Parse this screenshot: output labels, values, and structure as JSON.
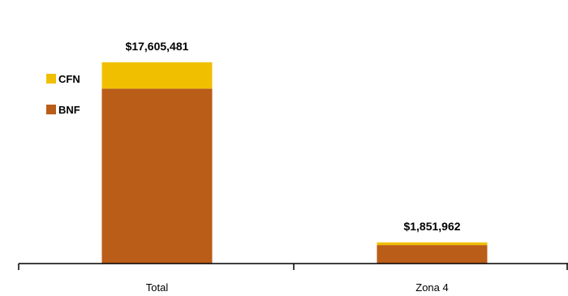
{
  "chart_data": {
    "type": "bar",
    "stacked": true,
    "categories": [
      "Total",
      "Zona 4"
    ],
    "series": [
      {
        "name": "BNF",
        "color": "#BA5D18",
        "values": [
          15300000,
          1620000
        ]
      },
      {
        "name": "CFN",
        "color": "#F0C000",
        "values": [
          2305481,
          231962
        ]
      }
    ],
    "totals": [
      17605481,
      1851962
    ],
    "total_labels": [
      "$17,605,481",
      "$1,851,962"
    ],
    "legend": [
      {
        "name": "CFN",
        "color": "#F0C000"
      },
      {
        "name": "BNF",
        "color": "#BA5D18"
      }
    ],
    "legend_position": "left",
    "ylim": [
      0,
      20000000
    ],
    "title": "",
    "xlabel": "",
    "ylabel": "",
    "grid": false
  }
}
